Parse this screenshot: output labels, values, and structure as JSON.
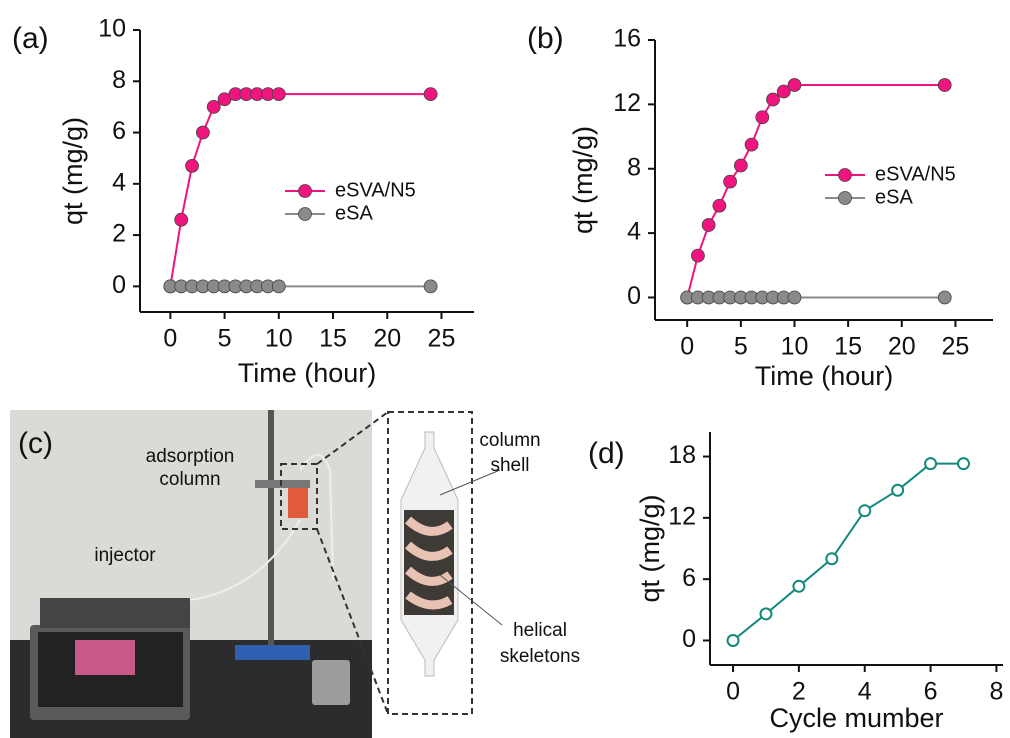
{
  "chart_data": [
    {
      "type": "line",
      "panel_label": "(a)",
      "xlabel": "Time (hour)",
      "ylabel": "qt (mg/g)",
      "x": [
        0,
        1,
        2,
        3,
        4,
        5,
        6,
        7,
        8,
        9,
        10,
        24
      ],
      "series": [
        {
          "name": "eSVA/N5",
          "color": "#f0147f",
          "values": [
            0,
            2.6,
            4.7,
            6.0,
            7.0,
            7.3,
            7.5,
            7.5,
            7.5,
            7.5,
            7.5,
            7.5
          ]
        },
        {
          "name": "eSA",
          "color": "#8a8a8a",
          "values": [
            0,
            0,
            0,
            0,
            0,
            0,
            0,
            0,
            0,
            0,
            0,
            0
          ]
        }
      ],
      "xlim": [
        -2.8,
        28
      ],
      "ylim": [
        -1,
        10
      ],
      "xticks": [
        0,
        5,
        10,
        15,
        20,
        25
      ],
      "yticks": [
        0,
        2,
        4,
        6,
        8,
        10
      ],
      "marker": "filled",
      "legend": "right"
    },
    {
      "type": "line",
      "panel_label": "(b)",
      "xlabel": "Time (hour)",
      "ylabel": "qt (mg/g)",
      "x": [
        0,
        1,
        2,
        3,
        4,
        5,
        6,
        7,
        8,
        9,
        10,
        24
      ],
      "series": [
        {
          "name": "eSVA/N5",
          "color": "#f0147f",
          "values": [
            0,
            2.6,
            4.5,
            5.7,
            7.2,
            8.2,
            9.5,
            11.2,
            12.3,
            12.8,
            13.2,
            13.2
          ]
        },
        {
          "name": "eSA",
          "color": "#8a8a8a",
          "values": [
            0,
            0,
            0,
            0,
            0,
            0,
            0,
            0,
            0,
            0,
            0,
            0
          ]
        }
      ],
      "xlim": [
        -3,
        28.5
      ],
      "ylim": [
        -1.4,
        16
      ],
      "xticks": [
        0,
        5,
        10,
        15,
        20,
        25
      ],
      "yticks": [
        0,
        4,
        8,
        12,
        16
      ],
      "marker": "filled",
      "legend": "right"
    },
    {
      "type": "line",
      "panel_label": "(d)",
      "xlabel": "Cycle mumber",
      "ylabel": "qt (mg/g)",
      "x": [
        0,
        1,
        2,
        3,
        4,
        5,
        6,
        7
      ],
      "series": [
        {
          "color": "#13897d",
          "values": [
            0,
            2.6,
            5.3,
            8.0,
            12.7,
            14.7,
            17.3,
            17.3
          ]
        }
      ],
      "xlim": [
        -0.7,
        8.2
      ],
      "ylim": [
        -2.4,
        20.4
      ],
      "xticks": [
        0,
        2,
        4,
        6,
        8
      ],
      "yticks": [
        0,
        6,
        12,
        18
      ],
      "marker": "open"
    }
  ],
  "photo_panel": {
    "panel_label": "(c)",
    "adsorption_column": [
      "adsorption",
      "column"
    ],
    "injector": "injector",
    "column_shell": [
      "column",
      "shell"
    ],
    "helical_skeletons": [
      "helical",
      "skeletons"
    ]
  }
}
